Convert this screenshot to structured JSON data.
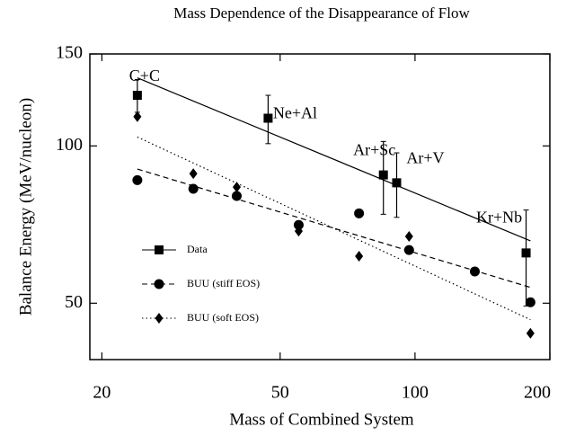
{
  "chart_data": {
    "type": "scatter",
    "title": "Mass Dependence of the Disappearance of Flow",
    "xlabel": "Mass of Combined System",
    "ylabel": "Balance Energy (MeV/nucleon)",
    "xscale": "log",
    "yscale": "log",
    "xlim": [
      18.8,
      200
    ],
    "xticks": [
      20,
      50,
      100,
      200
    ],
    "ylim": [
      39,
      150
    ],
    "yticks": [
      50,
      100,
      150
    ],
    "legend": "lower left",
    "series": [
      {
        "name": "Data",
        "marker": "square",
        "dash": "solid",
        "color": "#000000",
        "x": [
          24,
          47,
          85,
          91,
          177
        ],
        "values": [
          125,
          113,
          88,
          85,
          62.4
        ],
        "errors": [
          9,
          12,
          14,
          12,
          13
        ],
        "labels": [
          "C+C",
          "Ne+Al",
          "Ar+Sc",
          "Ar+V",
          "Kr+Nb"
        ],
        "fit": {
          "x": [
            24,
            181
          ],
          "values": [
            135,
            65.8
          ]
        }
      },
      {
        "name": "BUU (stiff EOS)",
        "marker": "circle",
        "dash": "dashed",
        "color": "#000000",
        "x": [
          24,
          32,
          40,
          55,
          75,
          97,
          136,
          181
        ],
        "values": [
          86,
          82.8,
          80.2,
          70.6,
          74.3,
          63.2,
          57.5,
          50.2
        ],
        "fit": {
          "x": [
            24,
            181
          ],
          "values": [
            90.3,
            53.6
          ]
        }
      },
      {
        "name": "BUU (soft EOS)",
        "marker": "diamond",
        "dash": "dotted",
        "color": "#000000",
        "x": [
          24,
          32,
          40,
          55,
          75,
          97,
          181
        ],
        "values": [
          113.8,
          88.5,
          83.4,
          68.7,
          61.5,
          67.1,
          43.8
        ],
        "fit": {
          "x": [
            24,
            181
          ],
          "values": [
            104,
            46.5
          ]
        }
      }
    ]
  }
}
